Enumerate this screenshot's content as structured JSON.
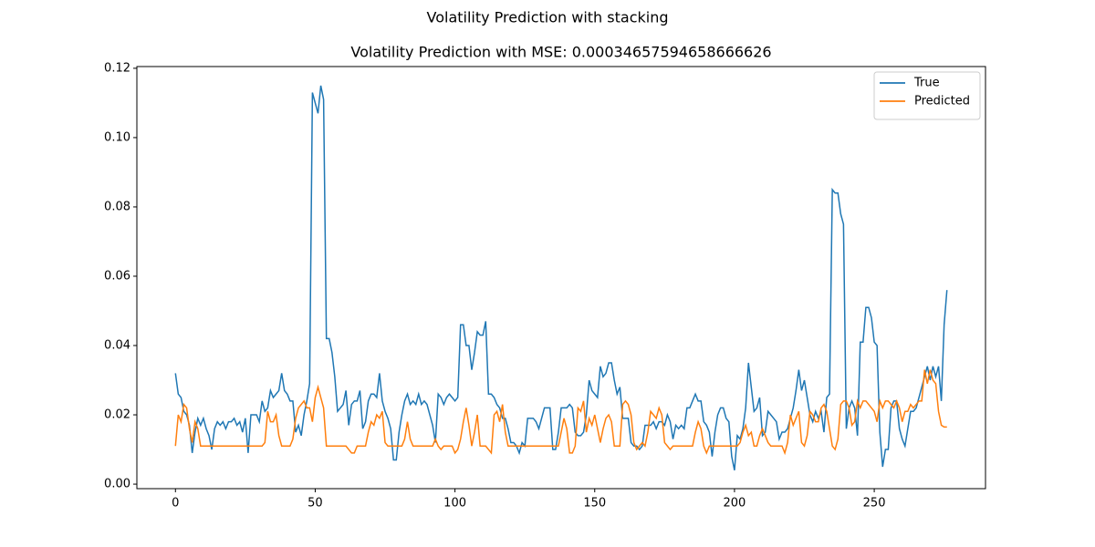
{
  "chart_data": {
    "type": "line",
    "suptitle": "Volatility Prediction with stacking",
    "title": "Volatility Prediction with MSE: 0.00034657594658666626",
    "x": [
      0,
      1,
      2,
      3,
      4,
      5,
      6,
      7,
      8,
      9,
      10,
      11,
      12,
      13,
      14,
      15,
      16,
      17,
      18,
      19,
      20,
      21,
      22,
      23,
      24,
      25,
      26,
      27,
      28,
      29,
      30,
      31,
      32,
      33,
      34,
      35,
      36,
      37,
      38,
      39,
      40,
      41,
      42,
      43,
      44,
      45,
      46,
      47,
      48,
      49,
      50,
      51,
      52,
      53,
      54,
      55,
      56,
      57,
      58,
      59,
      60,
      61,
      62,
      63,
      64,
      65,
      66,
      67,
      68,
      69,
      70,
      71,
      72,
      73,
      74,
      75,
      76,
      77,
      78,
      79,
      80,
      81,
      82,
      83,
      84,
      85,
      86,
      87,
      88,
      89,
      90,
      91,
      92,
      93,
      94,
      95,
      96,
      97,
      98,
      99,
      100,
      101,
      102,
      103,
      104,
      105,
      106,
      107,
      108,
      109,
      110,
      111,
      112,
      113,
      114,
      115,
      116,
      117,
      118,
      119,
      120,
      121,
      122,
      123,
      124,
      125,
      126,
      127,
      128,
      129,
      130,
      131,
      132,
      133,
      134,
      135,
      136,
      137,
      138,
      139,
      140,
      141,
      142,
      143,
      144,
      145,
      146,
      147,
      148,
      149,
      150,
      151,
      152,
      153,
      154,
      155,
      156,
      157,
      158,
      159,
      160,
      161,
      162,
      163,
      164,
      165,
      166,
      167,
      168,
      169,
      170,
      171,
      172,
      173,
      174,
      175,
      176,
      177,
      178,
      179,
      180,
      181,
      182,
      183,
      184,
      185,
      186,
      187,
      188,
      189,
      190,
      191,
      192,
      193,
      194,
      195,
      196,
      197,
      198,
      199,
      200,
      201,
      202,
      203,
      204,
      205,
      206,
      207,
      208,
      209,
      210,
      211,
      212,
      213,
      214,
      215,
      216,
      217,
      218,
      219,
      220,
      221,
      222,
      223,
      224,
      225,
      226,
      227,
      228,
      229,
      230,
      231,
      232,
      233,
      234,
      235,
      236,
      237,
      238,
      239,
      240,
      241,
      242,
      243,
      244,
      245,
      246,
      247,
      248,
      249,
      250,
      251,
      252,
      253,
      254,
      255,
      256,
      257,
      258,
      259,
      260,
      261,
      262,
      263,
      264,
      265,
      266,
      267,
      268,
      269,
      270,
      271,
      272,
      273,
      274,
      275,
      276
    ],
    "series": [
      {
        "name": "True",
        "color": "#1f77b4",
        "values": [
          0.032,
          0.026,
          0.025,
          0.021,
          0.02,
          0.017,
          0.009,
          0.015,
          0.019,
          0.017,
          0.019,
          0.016,
          0.014,
          0.01,
          0.016,
          0.018,
          0.017,
          0.018,
          0.016,
          0.018,
          0.018,
          0.019,
          0.017,
          0.018,
          0.015,
          0.019,
          0.009,
          0.02,
          0.02,
          0.02,
          0.018,
          0.024,
          0.021,
          0.022,
          0.027,
          0.025,
          0.026,
          0.027,
          0.032,
          0.027,
          0.026,
          0.024,
          0.024,
          0.015,
          0.017,
          0.014,
          0.02,
          0.024,
          0.029,
          0.113,
          0.11,
          0.107,
          0.115,
          0.111,
          0.042,
          0.042,
          0.038,
          0.031,
          0.021,
          0.022,
          0.023,
          0.027,
          0.017,
          0.023,
          0.024,
          0.024,
          0.027,
          0.016,
          0.018,
          0.024,
          0.026,
          0.026,
          0.025,
          0.032,
          0.024,
          0.021,
          0.019,
          0.016,
          0.007,
          0.007,
          0.015,
          0.02,
          0.024,
          0.026,
          0.023,
          0.024,
          0.023,
          0.026,
          0.023,
          0.024,
          0.023,
          0.02,
          0.017,
          0.012,
          0.026,
          0.025,
          0.023,
          0.025,
          0.026,
          0.025,
          0.024,
          0.025,
          0.046,
          0.046,
          0.04,
          0.04,
          0.033,
          0.038,
          0.044,
          0.043,
          0.043,
          0.047,
          0.026,
          0.026,
          0.025,
          0.023,
          0.022,
          0.019,
          0.019,
          0.016,
          0.012,
          0.012,
          0.011,
          0.009,
          0.012,
          0.011,
          0.019,
          0.019,
          0.019,
          0.018,
          0.016,
          0.019,
          0.022,
          0.022,
          0.022,
          0.01,
          0.01,
          0.015,
          0.022,
          0.022,
          0.022,
          0.023,
          0.022,
          0.015,
          0.014,
          0.014,
          0.015,
          0.02,
          0.03,
          0.027,
          0.026,
          0.025,
          0.034,
          0.031,
          0.032,
          0.035,
          0.035,
          0.03,
          0.026,
          0.028,
          0.019,
          0.019,
          0.019,
          0.012,
          0.011,
          0.011,
          0.01,
          0.011,
          0.017,
          0.017,
          0.017,
          0.018,
          0.016,
          0.018,
          0.018,
          0.017,
          0.02,
          0.018,
          0.013,
          0.017,
          0.016,
          0.017,
          0.016,
          0.022,
          0.022,
          0.024,
          0.026,
          0.024,
          0.024,
          0.018,
          0.017,
          0.015,
          0.008,
          0.015,
          0.02,
          0.022,
          0.022,
          0.019,
          0.018,
          0.008,
          0.004,
          0.014,
          0.013,
          0.016,
          0.022,
          0.035,
          0.028,
          0.021,
          0.022,
          0.025,
          0.014,
          0.015,
          0.021,
          0.02,
          0.019,
          0.018,
          0.013,
          0.015,
          0.015,
          0.016,
          0.019,
          0.022,
          0.027,
          0.033,
          0.027,
          0.03,
          0.025,
          0.02,
          0.018,
          0.021,
          0.019,
          0.021,
          0.015,
          0.025,
          0.026,
          0.085,
          0.084,
          0.084,
          0.078,
          0.075,
          0.016,
          0.022,
          0.024,
          0.022,
          0.014,
          0.041,
          0.041,
          0.051,
          0.051,
          0.048,
          0.041,
          0.04,
          0.015,
          0.005,
          0.01,
          0.01,
          0.022,
          0.024,
          0.024,
          0.016,
          0.013,
          0.011,
          0.016,
          0.021,
          0.021,
          0.022,
          0.025,
          0.028,
          0.031,
          0.034,
          0.03,
          0.034,
          0.031,
          0.034,
          0.024,
          0.046,
          0.056
        ]
      },
      {
        "name": "Predicted",
        "color": "#ff7f0e",
        "values": [
          0.011,
          0.02,
          0.018,
          0.023,
          0.022,
          0.016,
          0.012,
          0.018,
          0.016,
          0.011,
          0.011,
          0.011,
          0.011,
          0.011,
          0.011,
          0.011,
          0.011,
          0.011,
          0.011,
          0.011,
          0.011,
          0.011,
          0.011,
          0.011,
          0.011,
          0.011,
          0.011,
          0.011,
          0.011,
          0.011,
          0.011,
          0.011,
          0.012,
          0.021,
          0.018,
          0.018,
          0.02,
          0.014,
          0.011,
          0.011,
          0.011,
          0.011,
          0.013,
          0.019,
          0.022,
          0.023,
          0.024,
          0.022,
          0.022,
          0.018,
          0.025,
          0.028,
          0.025,
          0.022,
          0.011,
          0.011,
          0.011,
          0.011,
          0.011,
          0.011,
          0.011,
          0.011,
          0.01,
          0.009,
          0.009,
          0.011,
          0.011,
          0.011,
          0.011,
          0.015,
          0.018,
          0.017,
          0.02,
          0.019,
          0.021,
          0.012,
          0.011,
          0.011,
          0.011,
          0.011,
          0.011,
          0.011,
          0.013,
          0.018,
          0.013,
          0.011,
          0.011,
          0.011,
          0.011,
          0.011,
          0.011,
          0.011,
          0.011,
          0.013,
          0.011,
          0.01,
          0.011,
          0.011,
          0.011,
          0.011,
          0.009,
          0.01,
          0.013,
          0.018,
          0.022,
          0.017,
          0.011,
          0.015,
          0.02,
          0.011,
          0.011,
          0.011,
          0.01,
          0.009,
          0.02,
          0.021,
          0.018,
          0.023,
          0.015,
          0.011,
          0.011,
          0.011,
          0.011,
          0.011,
          0.011,
          0.011,
          0.011,
          0.011,
          0.011,
          0.011,
          0.011,
          0.011,
          0.011,
          0.011,
          0.011,
          0.011,
          0.011,
          0.011,
          0.015,
          0.019,
          0.016,
          0.009,
          0.009,
          0.011,
          0.022,
          0.021,
          0.024,
          0.015,
          0.019,
          0.017,
          0.02,
          0.016,
          0.012,
          0.016,
          0.019,
          0.02,
          0.018,
          0.011,
          0.011,
          0.011,
          0.023,
          0.024,
          0.023,
          0.02,
          0.012,
          0.01,
          0.011,
          0.012,
          0.011,
          0.015,
          0.021,
          0.02,
          0.019,
          0.022,
          0.02,
          0.012,
          0.011,
          0.01,
          0.011,
          0.011,
          0.011,
          0.011,
          0.011,
          0.011,
          0.011,
          0.011,
          0.015,
          0.018,
          0.016,
          0.011,
          0.009,
          0.011,
          0.011,
          0.011,
          0.011,
          0.011,
          0.011,
          0.011,
          0.011,
          0.011,
          0.011,
          0.011,
          0.012,
          0.015,
          0.017,
          0.014,
          0.015,
          0.011,
          0.011,
          0.014,
          0.016,
          0.014,
          0.012,
          0.011,
          0.011,
          0.011,
          0.011,
          0.011,
          0.009,
          0.012,
          0.02,
          0.017,
          0.019,
          0.021,
          0.012,
          0.011,
          0.014,
          0.021,
          0.02,
          0.018,
          0.018,
          0.022,
          0.023,
          0.021,
          0.016,
          0.011,
          0.01,
          0.013,
          0.023,
          0.024,
          0.024,
          0.022,
          0.017,
          0.018,
          0.024,
          0.022,
          0.024,
          0.024,
          0.023,
          0.022,
          0.021,
          0.018,
          0.024,
          0.022,
          0.024,
          0.024,
          0.023,
          0.022,
          0.024,
          0.022,
          0.018,
          0.021,
          0.021,
          0.023,
          0.022,
          0.023,
          0.024,
          0.024,
          0.033,
          0.029,
          0.033,
          0.03,
          0.029,
          0.021,
          0.017,
          0.0165,
          0.0165
        ]
      }
    ],
    "xlim": [
      -13.8,
      289.8
    ],
    "ylim": [
      -0.0013,
      0.1205
    ],
    "xticks": [
      0,
      50,
      100,
      150,
      200,
      250
    ],
    "yticks": [
      {
        "value": 0,
        "label": "0.00"
      },
      {
        "value": 0.02,
        "label": "0.02"
      },
      {
        "value": 0.04,
        "label": "0.04"
      },
      {
        "value": 0.06,
        "label": "0.06"
      },
      {
        "value": 0.08,
        "label": "0.08"
      },
      {
        "value": 0.1,
        "label": "0.10"
      },
      {
        "value": 0.12,
        "label": "0.12"
      }
    ],
    "grid": false,
    "legend": "upper right"
  }
}
